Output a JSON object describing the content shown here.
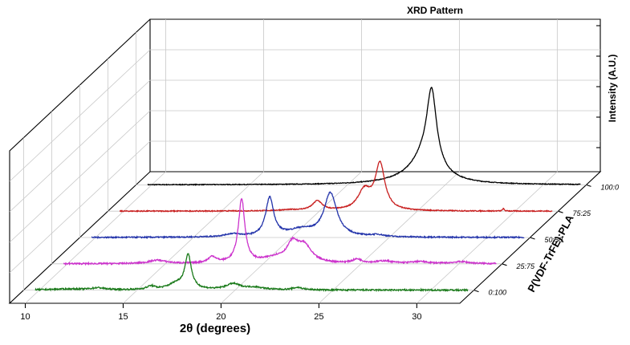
{
  "chart_data": {
    "type": "line",
    "title": "XRD Pattern",
    "xlabel": "2θ (degrees)",
    "ylabel": "P(VDF-TrFE):PLA",
    "zlabel": "Intensity (A.U.)",
    "x_ticks": [
      "10",
      "15",
      "20",
      "25",
      "30"
    ],
    "xlim": [
      9.2,
      32.2
    ],
    "grid": true,
    "series": [
      {
        "name": "0:100",
        "color": "#1a7a1a",
        "baseline_noise": 3,
        "peaks": [
          {
            "x": 11.5,
            "h": 2,
            "w": 1.2
          },
          {
            "x": 13.0,
            "h": 4,
            "w": 0.4
          },
          {
            "x": 15.7,
            "h": 7,
            "w": 0.25
          },
          {
            "x": 17.0,
            "h": 12,
            "w": 0.5
          },
          {
            "x": 17.6,
            "h": 70,
            "w": 0.2
          },
          {
            "x": 19.9,
            "h": 12,
            "w": 0.45
          },
          {
            "x": 21.0,
            "h": 5,
            "w": 0.6
          },
          {
            "x": 23.2,
            "h": 5,
            "w": 0.3
          }
        ]
      },
      {
        "name": "25:75",
        "color": "#cc33cc",
        "baseline_noise": 3,
        "peaks": [
          {
            "x": 14.6,
            "h": 7,
            "w": 0.5
          },
          {
            "x": 17.4,
            "h": 13,
            "w": 0.25
          },
          {
            "x": 18.9,
            "h": 132,
            "w": 0.2
          },
          {
            "x": 20.6,
            "h": 10,
            "w": 0.7
          },
          {
            "x": 21.5,
            "h": 36,
            "w": 0.35
          },
          {
            "x": 22.1,
            "h": 34,
            "w": 0.45
          },
          {
            "x": 24.8,
            "h": 8,
            "w": 0.3
          },
          {
            "x": 26.2,
            "h": 5,
            "w": 0.5
          },
          {
            "x": 28.0,
            "h": 4,
            "w": 0.5
          },
          {
            "x": 30.1,
            "h": 4,
            "w": 0.5
          }
        ]
      },
      {
        "name": "50:50",
        "color": "#2233aa",
        "baseline_noise": 2.5,
        "peaks": [
          {
            "x": 17.0,
            "h": 6,
            "w": 0.5
          },
          {
            "x": 18.9,
            "h": 80,
            "w": 0.25
          },
          {
            "x": 20.5,
            "h": 14,
            "w": 0.8
          },
          {
            "x": 22.0,
            "h": 90,
            "w": 0.4
          },
          {
            "x": 24.4,
            "h": 4,
            "w": 0.4
          }
        ]
      },
      {
        "name": "75:25",
        "color": "#c81e1e",
        "baseline_noise": 2,
        "peaks": [
          {
            "x": 18.5,
            "h": 2,
            "w": 0.8
          },
          {
            "x": 19.9,
            "h": 20,
            "w": 0.3
          },
          {
            "x": 22.3,
            "h": 40,
            "w": 0.4
          },
          {
            "x": 23.1,
            "h": 95,
            "w": 0.3
          },
          {
            "x": 29.4,
            "h": 5,
            "w": 0.05
          }
        ]
      },
      {
        "name": "100:0",
        "color": "#000000",
        "baseline_noise": 1.5,
        "peaks": [
          {
            "x": 23.0,
            "h": 4,
            "w": 1.6
          },
          {
            "x": 24.3,
            "h": 150,
            "w": 0.3
          },
          {
            "x": 24.0,
            "h": 55,
            "w": 0.9
          }
        ]
      }
    ]
  }
}
